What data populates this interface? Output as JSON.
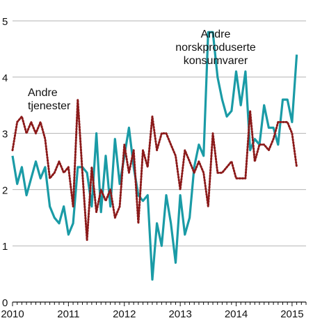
{
  "chart_data": {
    "type": "line",
    "title": "",
    "xlabel": "",
    "ylabel": "",
    "xlim": [
      2010.0,
      2015.25
    ],
    "ylim": [
      0,
      5
    ],
    "y_ticks": [
      "0",
      "1",
      "2",
      "3",
      "4",
      "5"
    ],
    "x_ticks": [
      "2010",
      "2011",
      "2012",
      "2013",
      "2014",
      "2015"
    ],
    "grid": "horizontal",
    "annotations": [
      {
        "lines": [
          "Andre",
          "norskproduserte",
          "konsumvarer"
        ],
        "series": "Andre norskproduserte konsumvarer",
        "align": "end"
      },
      {
        "lines": [
          "Andre",
          "tjenester"
        ],
        "series": "Andre tjenester",
        "align": "start"
      }
    ],
    "series": [
      {
        "name": "Andre norskproduserte konsumvarer",
        "color": "#1a9ba6",
        "style": "solid",
        "x": [
          2010.0,
          2010.083,
          2010.167,
          2010.25,
          2010.333,
          2010.417,
          2010.5,
          2010.583,
          2010.667,
          2010.75,
          2010.833,
          2010.917,
          2011.0,
          2011.083,
          2011.167,
          2011.25,
          2011.333,
          2011.417,
          2011.5,
          2011.583,
          2011.667,
          2011.75,
          2011.833,
          2011.917,
          2012.0,
          2012.083,
          2012.167,
          2012.25,
          2012.333,
          2012.417,
          2012.5,
          2012.583,
          2012.667,
          2012.75,
          2012.833,
          2012.917,
          2013.0,
          2013.083,
          2013.167,
          2013.25,
          2013.333,
          2013.417,
          2013.5,
          2013.583,
          2013.667,
          2013.75,
          2013.833,
          2013.917,
          2014.0,
          2014.083,
          2014.167,
          2014.25,
          2014.333,
          2014.417,
          2014.5,
          2014.583,
          2014.667,
          2014.75,
          2014.833,
          2014.917,
          2015.0,
          2015.083
        ],
        "values": [
          2.6,
          2.1,
          2.4,
          1.9,
          2.2,
          2.5,
          2.2,
          2.4,
          1.7,
          1.5,
          1.4,
          1.7,
          1.2,
          1.4,
          2.4,
          2.4,
          2.3,
          1.7,
          3.0,
          1.6,
          2.6,
          1.7,
          2.9,
          2.1,
          2.6,
          3.1,
          2.4,
          1.9,
          1.8,
          1.9,
          0.4,
          1.4,
          1.0,
          1.9,
          1.4,
          0.7,
          1.9,
          1.2,
          1.5,
          2.4,
          2.8,
          2.6,
          4.8,
          4.8,
          4.0,
          3.6,
          3.3,
          3.4,
          4.1,
          3.5,
          4.1,
          2.7,
          2.9,
          2.8,
          3.5,
          3.1,
          3.1,
          2.8,
          3.6,
          3.6,
          3.2,
          4.4
        ]
      },
      {
        "name": "Andre tjenester",
        "color": "#8b1a1a",
        "style": "dotted",
        "x": [
          2010.0,
          2010.083,
          2010.167,
          2010.25,
          2010.333,
          2010.417,
          2010.5,
          2010.583,
          2010.667,
          2010.75,
          2010.833,
          2010.917,
          2011.0,
          2011.083,
          2011.167,
          2011.25,
          2011.333,
          2011.417,
          2011.5,
          2011.583,
          2011.667,
          2011.75,
          2011.833,
          2011.917,
          2012.0,
          2012.083,
          2012.167,
          2012.25,
          2012.333,
          2012.417,
          2012.5,
          2012.583,
          2012.667,
          2012.75,
          2012.833,
          2012.917,
          2013.0,
          2013.083,
          2013.167,
          2013.25,
          2013.333,
          2013.417,
          2013.5,
          2013.583,
          2013.667,
          2013.75,
          2013.833,
          2013.917,
          2014.0,
          2014.083,
          2014.167,
          2014.25,
          2014.333,
          2014.417,
          2014.5,
          2014.583,
          2014.667,
          2014.75,
          2014.833,
          2014.917,
          2015.0,
          2015.083
        ],
        "values": [
          2.7,
          3.2,
          3.3,
          3.0,
          3.2,
          3.0,
          3.2,
          2.9,
          2.2,
          2.3,
          2.5,
          2.3,
          2.4,
          1.7,
          3.6,
          2.3,
          1.1,
          2.4,
          1.6,
          2.0,
          1.8,
          2.0,
          1.5,
          1.7,
          2.8,
          2.3,
          2.7,
          1.4,
          2.7,
          2.4,
          3.3,
          2.7,
          3.0,
          3.0,
          2.8,
          2.6,
          2.0,
          2.7,
          2.5,
          2.3,
          2.5,
          2.3,
          1.7,
          3.0,
          2.3,
          2.3,
          2.4,
          2.5,
          2.2,
          2.2,
          2.2,
          3.4,
          2.5,
          2.8,
          2.8,
          2.7,
          2.9,
          3.2,
          3.2,
          3.2,
          3.0,
          2.4
        ]
      }
    ]
  }
}
